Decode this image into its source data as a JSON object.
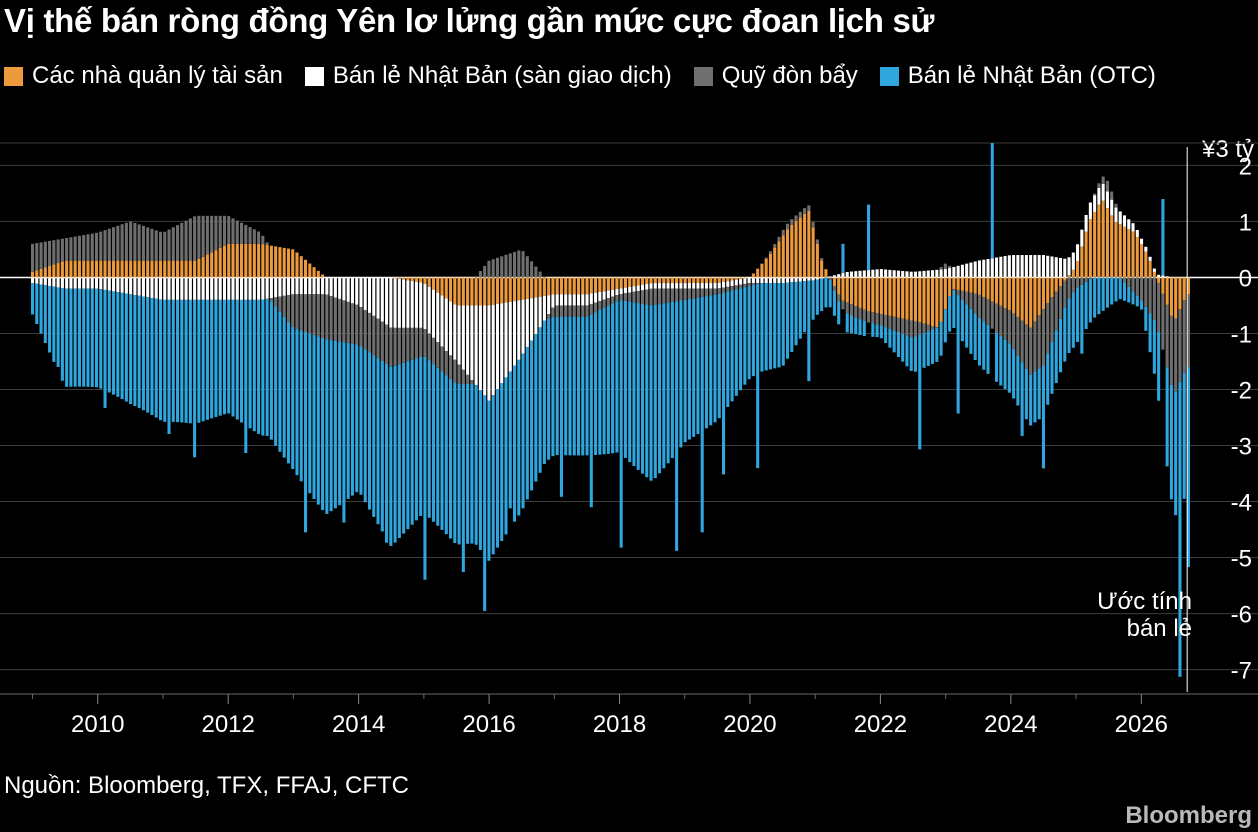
{
  "title": "Vị thế bán ròng đồng Yên lơ lửng gần mức cực đoan lịch sử",
  "legend": [
    {
      "label": "Các nhà quản lý tài sản",
      "color": "#ec9a3c"
    },
    {
      "label": "Bán lẻ Nhật Bản (sàn giao dịch)",
      "color": "#ffffff"
    },
    {
      "label": "Quỹ đòn bẩy",
      "color": "#6f6f6f"
    },
    {
      "label": "Bán lẻ Nhật Bản (OTC)",
      "color": "#2fa6dd"
    }
  ],
  "unit_label": "¥3 tỷ",
  "annotation": "Ước tính bán lẻ",
  "source": "Nguồn: Bloomberg, TFX, FFAJ, CFTC",
  "brand": "Bloomberg",
  "colors": {
    "asset_managers": "#ec9a3c",
    "retail_exchange": "#ffffff",
    "leveraged_funds": "#6f6f6f",
    "retail_otc": "#2fa6dd",
    "grid": "#444444",
    "background": "#000000"
  },
  "chart_data": {
    "type": "bar",
    "stacked": true,
    "unit": "¥3 tỷ",
    "xlim": [
      2008.9,
      2026.9
    ],
    "ylim": [
      -7.4,
      2.4
    ],
    "x_ticks": [
      2010,
      2012,
      2014,
      2016,
      2018,
      2020,
      2022,
      2024,
      2026
    ],
    "x_tick_labels": [
      "2010",
      "2012",
      "2014",
      "2016",
      "2018",
      "2020",
      "2022",
      "2024",
      "2026"
    ],
    "y_ticks": [
      2,
      1,
      0,
      -1,
      -2,
      -3,
      -4,
      -5,
      -6,
      -7
    ],
    "y_tick_labels": [
      "2",
      "1",
      "0",
      "-1",
      "-2",
      "-3",
      "-4",
      "-5",
      "-6",
      "-7"
    ],
    "grid": true,
    "legend_position": "top",
    "annotation_x": 2026.55,
    "series": [
      {
        "name": "Các nhà quản lý tài sản",
        "key": "asset_managers",
        "color": "#ec9a3c",
        "points": [
          [
            2009,
            0.1
          ],
          [
            2009.5,
            0.3
          ],
          [
            2010,
            0.3
          ],
          [
            2010.5,
            0.3
          ],
          [
            2011,
            0.3
          ],
          [
            2011.5,
            0.3
          ],
          [
            2012,
            0.6
          ],
          [
            2012.5,
            0.6
          ],
          [
            2013,
            0.5
          ],
          [
            2013.5,
            0.0
          ],
          [
            2014,
            0.0
          ],
          [
            2014.5,
            0.0
          ],
          [
            2015,
            -0.1
          ],
          [
            2015.5,
            -0.5
          ],
          [
            2016,
            -0.5
          ],
          [
            2016.5,
            -0.4
          ],
          [
            2017,
            -0.3
          ],
          [
            2017.5,
            -0.3
          ],
          [
            2018,
            -0.2
          ],
          [
            2018.5,
            -0.1
          ],
          [
            2019,
            -0.1
          ],
          [
            2019.5,
            -0.1
          ],
          [
            2020,
            0.0
          ],
          [
            2020.3,
            0.4
          ],
          [
            2020.6,
            0.9
          ],
          [
            2020.9,
            1.2
          ],
          [
            2021.1,
            0.3
          ],
          [
            2021.4,
            -0.4
          ],
          [
            2021.8,
            -0.6
          ],
          [
            2022.2,
            -0.7
          ],
          [
            2022.6,
            -0.8
          ],
          [
            2022.9,
            -0.9
          ],
          [
            2023.1,
            -0.2
          ],
          [
            2023.5,
            -0.3
          ],
          [
            2024,
            -0.6
          ],
          [
            2024.3,
            -0.9
          ],
          [
            2024.6,
            -0.4
          ],
          [
            2025,
            0.2
          ],
          [
            2025.2,
            1.0
          ],
          [
            2025.4,
            1.4
          ],
          [
            2025.6,
            1.0
          ],
          [
            2025.9,
            0.8
          ],
          [
            2026.1,
            0.4
          ],
          [
            2026.3,
            -0.2
          ],
          [
            2026.5,
            -0.8
          ],
          [
            2026.7,
            -0.3
          ]
        ]
      },
      {
        "name": "Bán lẻ Nhật Bản (sàn giao dịch)",
        "key": "retail_exchange",
        "color": "#ffffff",
        "points": [
          [
            2009,
            -0.1
          ],
          [
            2009.5,
            -0.2
          ],
          [
            2010,
            -0.2
          ],
          [
            2010.5,
            -0.3
          ],
          [
            2011,
            -0.4
          ],
          [
            2011.5,
            -0.4
          ],
          [
            2012,
            -0.4
          ],
          [
            2012.5,
            -0.4
          ],
          [
            2013,
            -0.3
          ],
          [
            2013.5,
            -0.3
          ],
          [
            2014,
            -0.5
          ],
          [
            2014.5,
            -0.9
          ],
          [
            2015,
            -0.8
          ],
          [
            2015.5,
            -1.0
          ],
          [
            2016,
            -1.7
          ],
          [
            2016.5,
            -1.0
          ],
          [
            2017,
            -0.2
          ],
          [
            2017.5,
            -0.2
          ],
          [
            2018,
            -0.1
          ],
          [
            2018.5,
            -0.1
          ],
          [
            2019,
            -0.1
          ],
          [
            2019.5,
            -0.1
          ],
          [
            2020,
            -0.1
          ],
          [
            2020.5,
            -0.1
          ],
          [
            2021,
            -0.05
          ],
          [
            2021.5,
            0.1
          ],
          [
            2022,
            0.15
          ],
          [
            2022.5,
            0.1
          ],
          [
            2023,
            0.15
          ],
          [
            2023.5,
            0.3
          ],
          [
            2024,
            0.4
          ],
          [
            2024.5,
            0.4
          ],
          [
            2025,
            0.3
          ],
          [
            2025.5,
            0.3
          ],
          [
            2026,
            0.1
          ],
          [
            2026.5,
            0.0
          ]
        ]
      },
      {
        "name": "Quỹ đòn bẩy",
        "key": "leveraged_funds",
        "color": "#6f6f6f",
        "points": [
          [
            2009,
            0.5
          ],
          [
            2009.5,
            0.4
          ],
          [
            2010,
            0.5
          ],
          [
            2010.5,
            0.7
          ],
          [
            2011,
            0.5
          ],
          [
            2011.5,
            0.8
          ],
          [
            2012,
            0.5
          ],
          [
            2012.5,
            0.2
          ],
          [
            2013,
            -0.6
          ],
          [
            2013.5,
            -0.8
          ],
          [
            2014,
            -0.7
          ],
          [
            2014.5,
            -0.7
          ],
          [
            2015,
            -0.5
          ],
          [
            2015.5,
            -0.4
          ],
          [
            2016,
            0.3
          ],
          [
            2016.5,
            0.5
          ],
          [
            2017,
            -0.2
          ],
          [
            2017.5,
            -0.2
          ],
          [
            2018,
            -0.1
          ],
          [
            2018.5,
            -0.3
          ],
          [
            2019,
            -0.2
          ],
          [
            2019.5,
            -0.1
          ],
          [
            2020,
            -0.05
          ],
          [
            2020.5,
            0.1
          ],
          [
            2021,
            0.1
          ],
          [
            2021.5,
            -0.2
          ],
          [
            2022,
            -0.2
          ],
          [
            2022.5,
            -0.3
          ],
          [
            2023,
            0.1
          ],
          [
            2023.5,
            -0.4
          ],
          [
            2024,
            -0.6
          ],
          [
            2024.5,
            -1.0
          ],
          [
            2025,
            -0.2
          ],
          [
            2025.5,
            0.2
          ],
          [
            2026,
            -0.4
          ],
          [
            2026.5,
            -1.3
          ]
        ]
      },
      {
        "name": "Bán lẻ Nhật Bản (OTC)",
        "key": "retail_otc",
        "color": "#2fa6dd",
        "points": [
          [
            2009,
            -0.4
          ],
          [
            2009.5,
            -1.8
          ],
          [
            2010,
            -2.0
          ],
          [
            2010.5,
            -2.3
          ],
          [
            2011,
            -2.5
          ],
          [
            2011.5,
            -2.4
          ],
          [
            2012,
            -2.0
          ],
          [
            2012.5,
            -2.2
          ],
          [
            2013,
            -2.2
          ],
          [
            2013.5,
            -2.8
          ],
          [
            2014,
            -2.4
          ],
          [
            2014.5,
            -3.2
          ],
          [
            2015,
            -3.0
          ],
          [
            2015.5,
            -3.2
          ],
          [
            2016,
            -3.2
          ],
          [
            2016.5,
            -3.0
          ],
          [
            2017,
            -2.5
          ],
          [
            2017.5,
            -2.3
          ],
          [
            2018,
            -2.4
          ],
          [
            2018.5,
            -2.8
          ],
          [
            2019,
            -2.3
          ],
          [
            2019.5,
            -2.2
          ],
          [
            2020,
            -1.8
          ],
          [
            2020.5,
            -1.8
          ],
          [
            2021,
            -1.0
          ],
          [
            2021.5,
            -0.6
          ],
          [
            2022,
            -0.3
          ],
          [
            2022.5,
            -0.5
          ],
          [
            2023,
            -0.3
          ],
          [
            2023.5,
            -0.5
          ],
          [
            2024,
            -0.6
          ],
          [
            2024.5,
            -0.8
          ],
          [
            2025,
            -1.1
          ],
          [
            2025.5,
            -0.8
          ],
          [
            2026,
            -0.5
          ],
          [
            2026.5,
            -2.5
          ]
        ]
      }
    ],
    "otc_spikes": [
      [
        2009.4,
        -1.6
      ],
      [
        2010.1,
        -2.6
      ],
      [
        2011.1,
        -3.1
      ],
      [
        2011.5,
        -3.4
      ],
      [
        2012.3,
        -3.0
      ],
      [
        2013.2,
        -4.2
      ],
      [
        2013.8,
        -4.1
      ],
      [
        2014.4,
        -4.7
      ],
      [
        2015.0,
        -5.6
      ],
      [
        2015.6,
        -5.6
      ],
      [
        2015.9,
        -6.3
      ],
      [
        2016.3,
        -4.4
      ],
      [
        2017.1,
        -3.9
      ],
      [
        2017.6,
        -3.9
      ],
      [
        2018.0,
        -4.5
      ],
      [
        2018.9,
        -4.6
      ],
      [
        2019.3,
        -4.4
      ],
      [
        2019.6,
        -3.5
      ],
      [
        2020.1,
        -3.6
      ],
      [
        2020.9,
        -2.2
      ],
      [
        2021.4,
        0.6
      ],
      [
        2021.8,
        1.3
      ],
      [
        2022.6,
        -2.9
      ],
      [
        2023.2,
        -2.1
      ],
      [
        2023.7,
        2.4
      ],
      [
        2024.2,
        -2.6
      ],
      [
        2024.5,
        -3.3
      ],
      [
        2025.1,
        -1.5
      ],
      [
        2026.3,
        1.4
      ],
      [
        2026.6,
        -7.4
      ],
      [
        2026.75,
        -5.4
      ]
    ]
  }
}
